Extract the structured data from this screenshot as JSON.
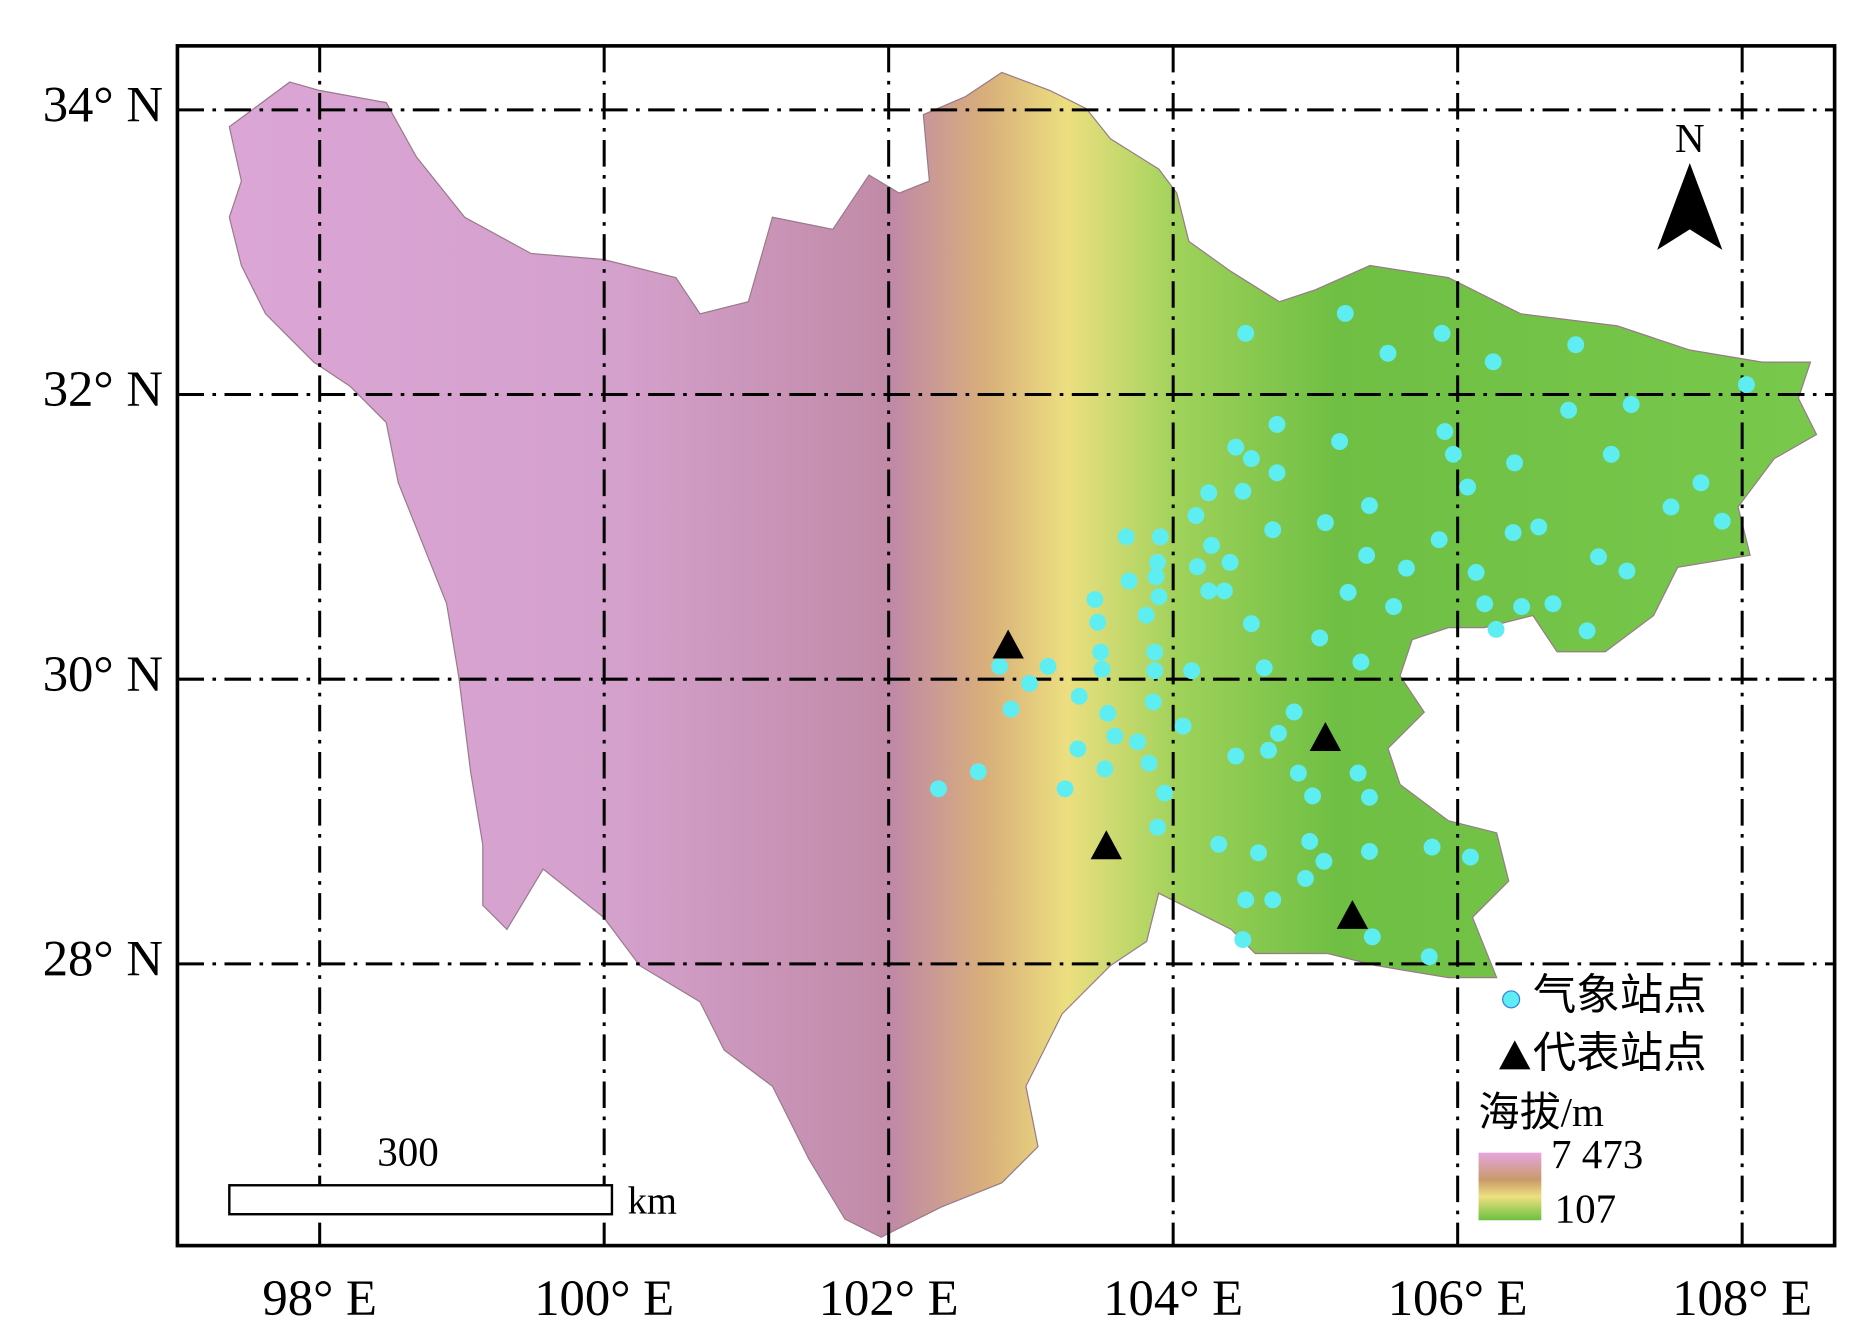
{
  "chart_data": {
    "type": "map",
    "xlim": [
      97.0,
      108.65
    ],
    "ylim": [
      26.02,
      34.45
    ],
    "xticks": [
      {
        "value": 98,
        "label": "98° E"
      },
      {
        "value": 100,
        "label": "100° E"
      },
      {
        "value": 102,
        "label": "102° E"
      },
      {
        "value": 104,
        "label": "104° E"
      },
      {
        "value": 106,
        "label": "106° E"
      },
      {
        "value": 108,
        "label": "108° E"
      }
    ],
    "yticks": [
      {
        "value": 28,
        "label": "28° N"
      },
      {
        "value": 30,
        "label": "30° N"
      },
      {
        "value": 32,
        "label": "32° N"
      },
      {
        "value": 34,
        "label": "34° N"
      }
    ],
    "grid": true,
    "north_arrow": "N",
    "legend": "lower right",
    "series": [
      {
        "name": "气象站点",
        "color": "#5eeef2",
        "marker": "circle",
        "x": [
          104.51,
          105.21,
          105.89,
          105.51,
          106.25,
          106.83,
          108.03,
          107.22,
          106.78,
          104.73,
          105.91,
          105.17,
          104.44,
          104.55,
          105.97,
          106.4,
          107.08,
          104.73,
          106.07,
          104.49,
          104.25,
          107.71,
          107.5,
          105.38,
          105.07,
          104.7,
          104.16,
          107.86,
          106.57,
          106.39,
          105.87,
          103.67,
          103.91,
          104.27,
          105.64,
          106.13,
          105.36,
          106.99,
          107.19,
          104.4,
          104.17,
          103.89,
          103.88,
          103.69,
          104.36,
          105.23,
          103.9,
          104.25,
          103.45,
          105.55,
          106.67,
          106.45,
          106.19,
          103.81,
          103.47,
          104.55,
          106.27,
          106.91,
          105.03,
          103.49,
          103.87,
          102.78,
          103.12,
          103.5,
          105.32,
          104.64,
          103.87,
          104.13,
          102.99,
          103.34,
          103.86,
          102.86,
          103.54,
          104.85,
          104.07,
          103.59,
          103.75,
          104.74,
          103.33,
          104.44,
          104.67,
          104.88,
          103.83,
          105.3,
          102.63,
          103.52,
          105.38,
          103.24,
          102.35,
          103.94,
          104.98,
          103.89,
          104.32,
          104.96,
          104.6,
          105.38,
          105.82,
          105.06,
          104.93,
          104.51,
          104.7,
          104.49,
          105.4,
          105.8,
          106.09
        ],
        "y": [
          32.43,
          32.57,
          32.43,
          32.29,
          32.23,
          32.35,
          32.07,
          31.93,
          31.89,
          31.79,
          31.74,
          31.67,
          31.63,
          31.55,
          31.58,
          31.52,
          31.58,
          31.45,
          31.35,
          31.32,
          31.31,
          31.38,
          31.21,
          31.22,
          31.1,
          31.05,
          31.15,
          31.11,
          31.07,
          31.03,
          30.98,
          31.0,
          31.0,
          30.94,
          30.78,
          30.75,
          30.87,
          30.86,
          30.76,
          30.82,
          30.79,
          30.82,
          30.72,
          30.69,
          30.62,
          30.61,
          30.58,
          30.62,
          30.56,
          30.51,
          30.53,
          30.51,
          30.53,
          30.45,
          30.4,
          30.39,
          30.35,
          30.34,
          30.29,
          30.19,
          30.19,
          30.09,
          30.09,
          30.07,
          30.12,
          30.08,
          30.06,
          30.06,
          29.97,
          29.88,
          29.84,
          29.79,
          29.76,
          29.77,
          29.67,
          29.6,
          29.56,
          29.62,
          29.51,
          29.46,
          29.5,
          29.34,
          29.41,
          29.34,
          29.35,
          29.37,
          29.17,
          29.23,
          29.23,
          29.2,
          29.18,
          28.96,
          28.84,
          28.86,
          28.78,
          28.79,
          28.82,
          28.72,
          28.6,
          28.45,
          28.45,
          28.17,
          28.19,
          28.05,
          28.75
        ]
      },
      {
        "name": "代表站点",
        "color": "#000000",
        "marker": "triangle",
        "x": [
          102.84,
          105.07,
          103.53,
          105.26
        ],
        "y": [
          30.23,
          29.58,
          28.82,
          28.33
        ]
      }
    ],
    "colorbar": {
      "title": "海拔/m",
      "max": {
        "value": 7473,
        "label": "7 473"
      },
      "min": 107
    },
    "scale_bar": {
      "length": 300,
      "unit": "km"
    }
  }
}
